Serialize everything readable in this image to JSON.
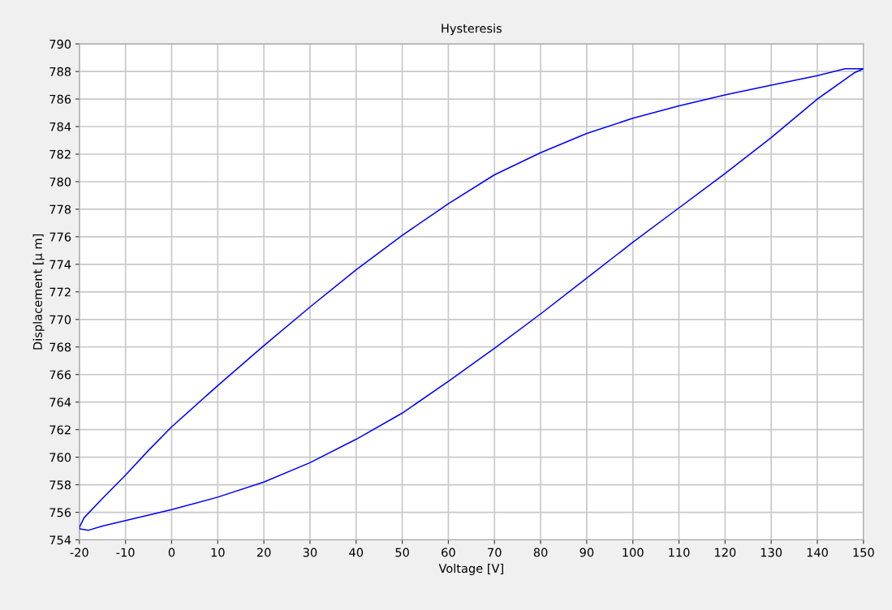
{
  "chart_data": {
    "type": "line",
    "title": "Hysteresis",
    "xlabel": "Voltage [V]",
    "ylabel": "Displacement [µ m]",
    "xlim": [
      -20,
      150
    ],
    "xticks": [
      -20,
      -10,
      0,
      10,
      20,
      30,
      40,
      50,
      60,
      70,
      80,
      90,
      100,
      110,
      120,
      130,
      140,
      150
    ],
    "ylim": [
      754,
      790
    ],
    "yticks": [
      754,
      756,
      758,
      760,
      762,
      764,
      766,
      768,
      770,
      772,
      774,
      776,
      778,
      780,
      782,
      784,
      786,
      788,
      790
    ],
    "grid": true,
    "marker": "none",
    "line_style": "solid",
    "series": [
      {
        "color": "#0000ff",
        "x": [
          -20,
          -19,
          -15,
          -10,
          -5,
          0,
          10,
          20,
          30,
          40,
          50,
          60,
          70,
          80,
          90,
          100,
          110,
          120,
          130,
          140,
          146,
          150,
          148,
          140,
          130,
          120,
          110,
          100,
          90,
          80,
          70,
          60,
          50,
          40,
          30,
          20,
          10,
          0,
          -10,
          -15,
          -18,
          -20
        ],
        "values": [
          754.9,
          755.6,
          757.0,
          758.7,
          760.5,
          762.2,
          765.2,
          768.1,
          770.9,
          773.6,
          776.1,
          778.4,
          780.5,
          782.1,
          783.5,
          784.6,
          785.5,
          786.3,
          787.0,
          787.7,
          788.2,
          788.2,
          787.9,
          786.0,
          783.2,
          780.6,
          778.1,
          775.6,
          773.0,
          770.4,
          767.9,
          765.5,
          763.2,
          761.3,
          759.6,
          758.2,
          757.1,
          756.2,
          755.4,
          755.0,
          754.7,
          754.8
        ]
      }
    ]
  }
}
